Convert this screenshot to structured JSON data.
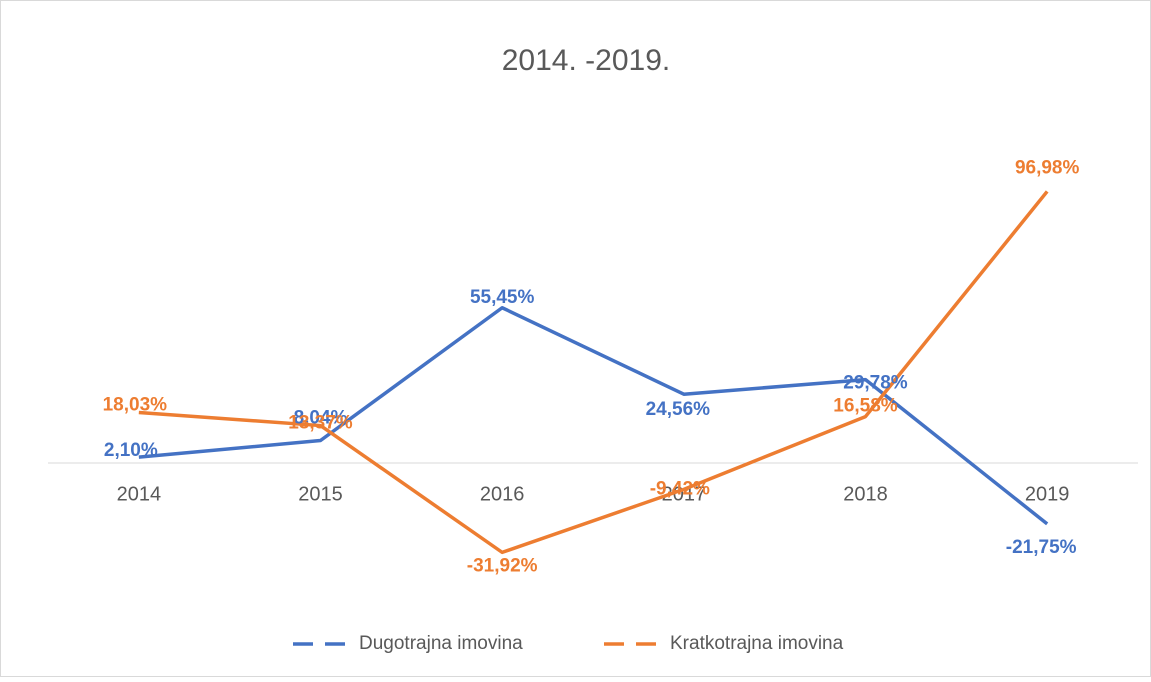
{
  "chart_data": {
    "type": "line",
    "title": "2014. -2019.",
    "categories": [
      "2014",
      "2015",
      "2016",
      "2017",
      "2018",
      "2019"
    ],
    "series": [
      {
        "name": "Dugotrajna imovina",
        "color": "#4472c4",
        "values": [
          2.1,
          8.04,
          55.45,
          24.56,
          29.78,
          -21.75
        ],
        "value_labels": [
          "2,10%",
          "8,04%",
          "55,45%",
          "24,56%",
          "29,78%",
          "-21,75%"
        ]
      },
      {
        "name": "Kratkotrajna imovina",
        "color": "#ed7d31",
        "values": [
          18.03,
          13.37,
          -31.92,
          -9.42,
          16.58,
          96.98
        ],
        "value_labels": [
          "18,03%",
          "13,37%",
          "-31,92%",
          "-9,42%",
          "16,58%",
          "96,98%"
        ]
      }
    ],
    "ylim": [
      -40,
      100
    ],
    "legend": "bottom"
  }
}
